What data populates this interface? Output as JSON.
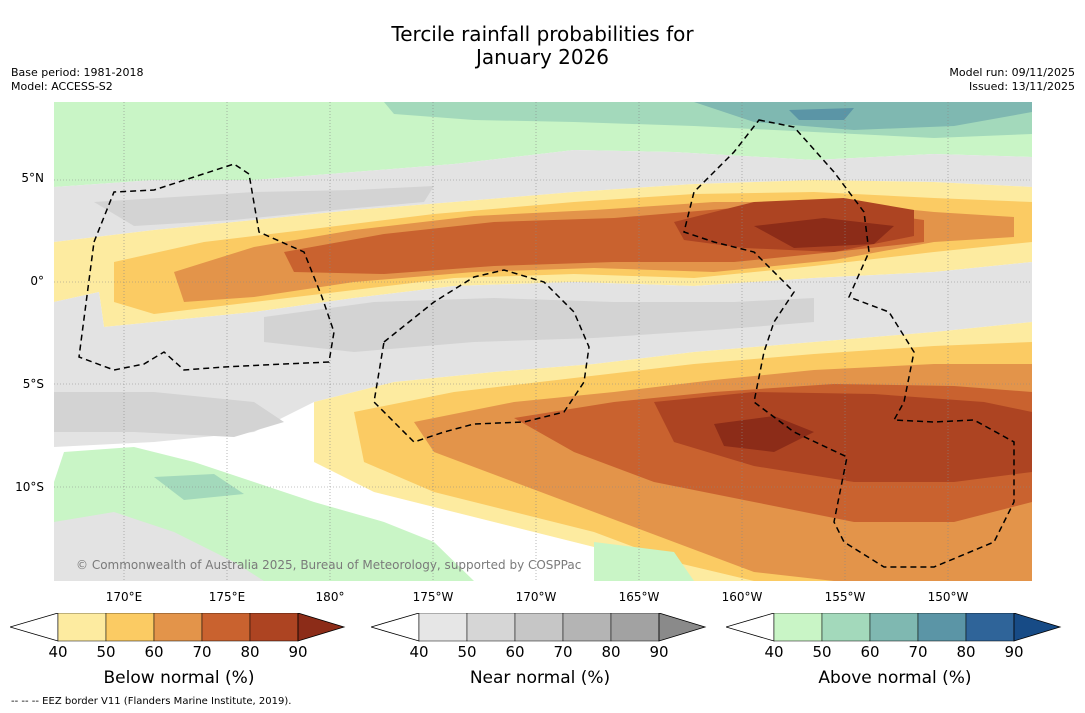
{
  "title_line1": "Tercile rainfall probabilities for",
  "title_line2": "January 2026",
  "base_period": "Base period: 1981-2018",
  "model": "Model: ACCESS-S2",
  "model_run": "Model run: 09/11/2025",
  "issued": "Issued: 13/11/2025",
  "lat_labels": [
    "5°N",
    "0°",
    "5°S",
    "10°S"
  ],
  "lon_labels": [
    "170°E",
    "175°E",
    "180°",
    "175°W",
    "170°W",
    "165°W",
    "160°W",
    "155°W",
    "150°W"
  ],
  "copyright": "© Commonwealth of Australia 2025, Bureau of Meteorology, supported by COSPPac",
  "footer": "--  --  -- EEZ border V11 (Flanders Marine Institute, 2019).",
  "colorbars": [
    {
      "label": "Below normal (%)",
      "ticks": [
        "40",
        "50",
        "60",
        "70",
        "80",
        "90"
      ],
      "colors": [
        "#ffffff",
        "#fdeba0",
        "#fbcb63",
        "#e3944a",
        "#c9622f",
        "#ad4422",
        "#8c2c18"
      ]
    },
    {
      "label": "Near normal (%)",
      "ticks": [
        "40",
        "50",
        "60",
        "70",
        "80",
        "90"
      ],
      "colors": [
        "#ffffff",
        "#e6e6e6",
        "#d6d6d6",
        "#c6c6c6",
        "#b4b4b4",
        "#a2a2a2",
        "#8a8a8a"
      ]
    },
    {
      "label": "Above normal (%)",
      "ticks": [
        "40",
        "50",
        "60",
        "70",
        "80",
        "90"
      ],
      "colors": [
        "#ffffff",
        "#c9f5c6",
        "#a3d9bb",
        "#7fb8b1",
        "#5b95a6",
        "#2f6499",
        "#174b86"
      ]
    }
  ],
  "colors": {
    "bn50": "#fdeba0",
    "bn60": "#fbcb63",
    "bn70": "#e3944a",
    "bn80": "#c9622f",
    "bn90": "#ad4422",
    "bn95": "#8c2c18",
    "nn50": "#e3e3e3",
    "nn60": "#d3d3d3",
    "nn70": "#c4c4c4",
    "an50": "#c9f5c6",
    "an60": "#a3d9bb",
    "an70": "#7fb8b1",
    "an80": "#5b95a6"
  }
}
